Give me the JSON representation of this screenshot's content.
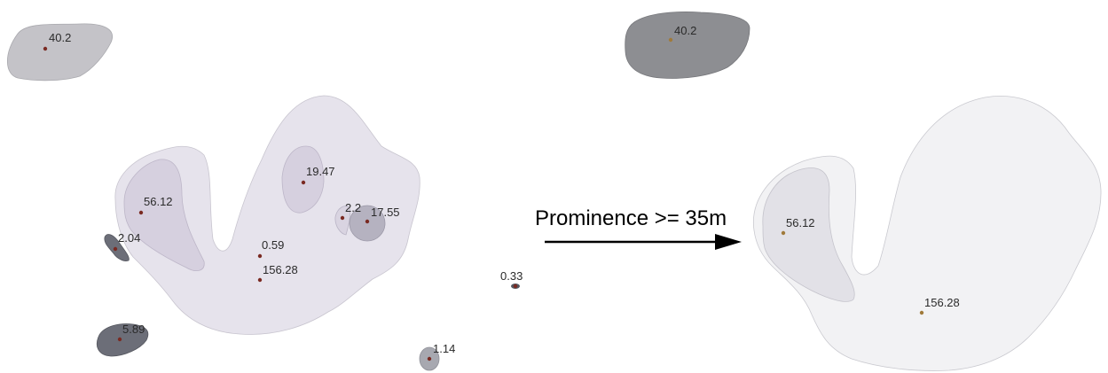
{
  "arrow_label": "Prominence >= 35m",
  "left_panel": {
    "peaks": [
      {
        "id": "p40",
        "label": "40.2"
      },
      {
        "id": "p56",
        "label": "56.12"
      },
      {
        "id": "p19",
        "label": "19.47"
      },
      {
        "id": "p2_2",
        "label": "2.2"
      },
      {
        "id": "p17",
        "label": "17.55"
      },
      {
        "id": "p2_04",
        "label": "2.04"
      },
      {
        "id": "p059",
        "label": "0.59"
      },
      {
        "id": "p156",
        "label": "156.28"
      },
      {
        "id": "p033",
        "label": "0.33"
      },
      {
        "id": "p589",
        "label": "5.89"
      },
      {
        "id": "p114",
        "label": "1.14"
      }
    ]
  },
  "right_panel": {
    "peaks": [
      {
        "id": "r40",
        "label": "40.2"
      },
      {
        "id": "r56",
        "label": "56.12"
      },
      {
        "id": "r156",
        "label": "156.28"
      }
    ]
  },
  "colors": {
    "big_region_left": "#e6e3ec",
    "big_region_right": "#f2f2f4",
    "small_region_left": "#c4c3c8",
    "small_region_right": "#8d8e92",
    "dark_region": "#6c6e78",
    "medium_region": "#a7a8b0",
    "inner_region": "#d6d0df",
    "marker": "#7a2a22",
    "marker_right": "#a07a3a"
  }
}
